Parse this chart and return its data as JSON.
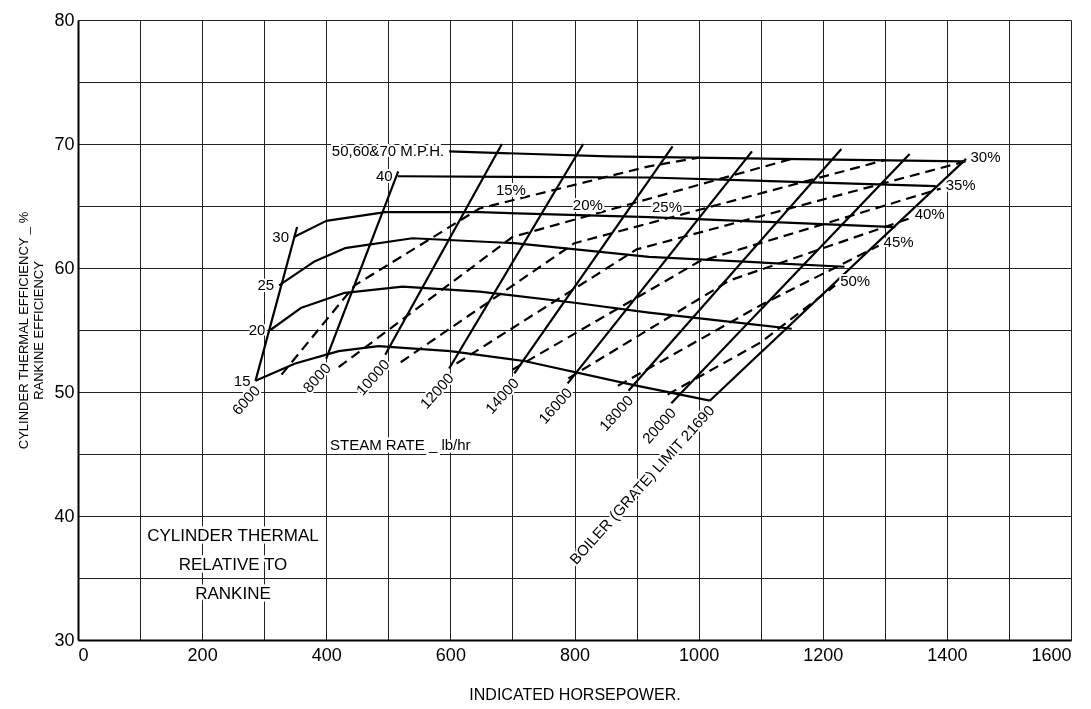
{
  "chart_data": {
    "type": "line",
    "xlabel": "INDICATED HORSEPOWER.",
    "ylabel": "CYLINDER THERMAL EFFICIENCY _ %\nRANKINE EFFICIENCY",
    "xlim": [
      0,
      1600
    ],
    "ylim": [
      30,
      80
    ],
    "xticks": [
      0,
      {
        "value": 100,
        "label": null
      },
      200,
      {
        "value": 300,
        "label": null
      },
      400,
      {
        "value": 500,
        "label": null
      },
      600,
      {
        "value": 700,
        "label": null
      },
      800,
      {
        "value": 900,
        "label": null
      },
      1000,
      {
        "value": 1100,
        "label": null
      },
      1200,
      {
        "value": 1300,
        "label": null
      },
      1400,
      {
        "value": 1500,
        "label": null
      },
      1600
    ],
    "yticks": [
      30,
      {
        "value": 35,
        "label": null
      },
      40,
      {
        "value": 45,
        "label": null
      },
      50,
      {
        "value": 55,
        "label": null
      },
      60,
      {
        "value": 65,
        "label": null
      },
      70,
      {
        "value": 75,
        "label": null
      },
      80
    ],
    "grid": true,
    "marker": "none",
    "annotations": [
      "STEAM RATE _ lb/hr",
      "CYLINDER THERMAL\nRELATIVE TO\nRANKINE"
    ],
    "series": [
      {
        "name": "15",
        "color": "#000000",
        "line_style": "solid",
        "x": [
          286,
          350,
          420,
          484,
          600,
          719,
          892,
          1018
        ],
        "values": [
          50.9,
          52.3,
          53.3,
          53.7,
          53.3,
          52.5,
          50.6,
          49.3
        ]
      },
      {
        "name": "20",
        "color": "#000000",
        "line_style": "solid",
        "x": [
          310,
          360,
          430,
          523,
          647,
          800,
          920,
          1150
        ],
        "values": [
          55.0,
          56.8,
          58.0,
          58.5,
          58.1,
          57.2,
          56.4,
          55.1
        ]
      },
      {
        "name": "25",
        "color": "#000000",
        "line_style": "solid",
        "x": [
          324,
          380,
          430,
          539,
          703,
          920,
          1235
        ],
        "values": [
          58.6,
          60.5,
          61.6,
          62.4,
          62.0,
          60.9,
          60.1
        ]
      },
      {
        "name": "30",
        "color": "#000000",
        "line_style": "solid",
        "x": [
          348,
          400,
          495,
          647,
          920,
          1317
        ],
        "values": [
          62.5,
          63.8,
          64.5,
          64.5,
          64.1,
          63.3
        ]
      },
      {
        "name": "40",
        "color": "#000000",
        "line_style": "solid",
        "x": [
          515,
          920,
          1382
        ],
        "values": [
          67.4,
          67.3,
          66.6
        ]
      },
      {
        "name": "50,60&70 M.P.H.",
        "color": "#000000",
        "line_style": "solid",
        "x": [
          598,
          855,
          1426
        ],
        "values": [
          69.4,
          69.0,
          68.6
        ]
      },
      {
        "name": "6000",
        "color": "#000000",
        "line_style": "solid",
        "x": [
          286,
          353
        ],
        "values": [
          50.9,
          63.3
        ]
      },
      {
        "name": "8000",
        "color": "#000000",
        "line_style": "solid",
        "x": [
          400,
          516
        ],
        "values": [
          52.7,
          67.8
        ]
      },
      {
        "name": "10000",
        "color": "#000000",
        "line_style": "solid",
        "x": [
          495,
          683
        ],
        "values": [
          53.0,
          70.0
        ]
      },
      {
        "name": "12000",
        "color": "#000000",
        "line_style": "solid",
        "x": [
          598,
          814
        ],
        "values": [
          51.9,
          70.0
        ]
      },
      {
        "name": "14000",
        "color": "#000000",
        "line_style": "solid",
        "x": [
          703,
          958
        ],
        "values": [
          51.5,
          69.8
        ]
      },
      {
        "name": "16000",
        "color": "#000000",
        "line_style": "solid",
        "x": [
          789,
          1086
        ],
        "values": [
          50.7,
          69.4
        ]
      },
      {
        "name": "18000",
        "color": "#000000",
        "line_style": "solid",
        "x": [
          887,
          1230
        ],
        "values": [
          50.1,
          69.6
        ]
      },
      {
        "name": "20000",
        "color": "#000000",
        "line_style": "solid",
        "x": [
          956,
          1340
        ],
        "values": [
          49.1,
          69.2
        ]
      },
      {
        "name": "BOILER (GRATE) LIMIT 21690",
        "color": "#000000",
        "line_style": "solid",
        "x": [
          1018,
          1431
        ],
        "values": [
          49.3,
          68.8
        ]
      },
      {
        "name": "15%",
        "color": "#000000",
        "line_style": "dashed",
        "x": [
          328,
          446,
          647,
          920,
          1000
        ],
        "values": [
          51.4,
          58.6,
          64.8,
          68.2,
          68.9
        ]
      },
      {
        "name": "20%",
        "color": "#000000",
        "line_style": "dashed",
        "x": [
          420,
          700,
          1150
        ],
        "values": [
          52.0,
          62.5,
          68.8
        ]
      },
      {
        "name": "25%",
        "color": "#000000",
        "line_style": "dashed",
        "x": [
          520,
          800,
          1300
        ],
        "values": [
          52.4,
          62.0,
          68.7
        ]
      },
      {
        "name": "30%",
        "color": "#000000",
        "line_style": "dashed",
        "x": [
          610,
          900,
          1430
        ],
        "values": [
          52.3,
          61.5,
          68.6
        ]
      },
      {
        "name": "35%",
        "color": "#000000",
        "line_style": "dashed",
        "x": [
          700,
          1000,
          1390
        ],
        "values": [
          51.8,
          60.5,
          66.4
        ]
      },
      {
        "name": "40%",
        "color": "#000000",
        "line_style": "dashed",
        "x": [
          790,
          1050,
          1340
        ],
        "values": [
          51.1,
          59.0,
          64.0
        ]
      },
      {
        "name": "45%",
        "color": "#000000",
        "line_style": "dashed",
        "x": [
          870,
          1100,
          1290
        ],
        "values": [
          50.5,
          57.0,
          61.8
        ]
      },
      {
        "name": "50%",
        "color": "#000000",
        "line_style": "dashed",
        "x": [
          950,
          1100,
          1220
        ],
        "values": [
          49.8,
          54.0,
          58.6
        ]
      }
    ]
  }
}
